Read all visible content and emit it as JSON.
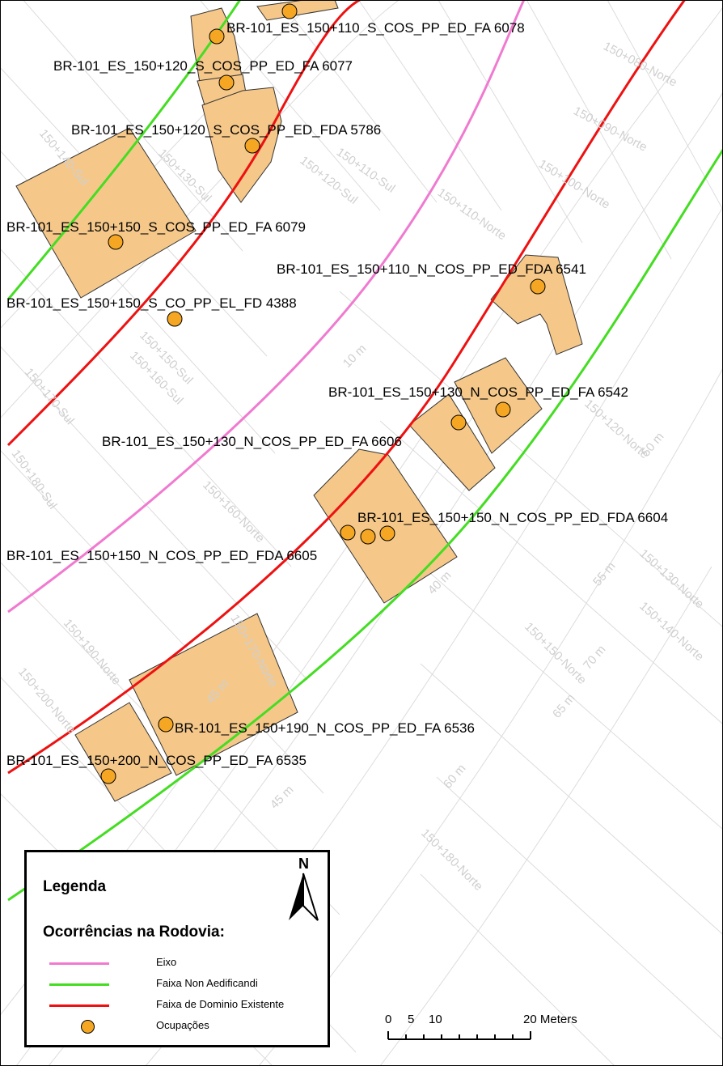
{
  "map": {
    "grid_labels": [
      "150+080-Norte",
      "150+090-Norte",
      "150+100-Norte",
      "150+110-Norte",
      "150+110-Sul",
      "150+120-Sul",
      "150+130-Sul",
      "150+140-Sul",
      "150+150-Sul",
      "150+160-Sul",
      "150+170-Sul",
      "150+180-Sul",
      "150+120-Norte",
      "150+130-Norte",
      "150+140-Norte",
      "150+150-Norte",
      "150+160-Norte",
      "150+170-Norte",
      "150+180-Norte",
      "150+190-Norte",
      "150+200-Norte",
      "10 m",
      "40 m",
      "45 m",
      "50 m",
      "55 m",
      "60 m",
      "65 m",
      "70 m",
      "45 m"
    ],
    "occupation_labels": [
      "BR-101_ES_150+110_S_COS_PP_ED_FA 6078",
      "BR-101_ES_150+120_S_COS_PP_ED_FA 6077",
      "BR-101_ES_150+120_S_COS_PP_ED_FDA 5786",
      "BR-101_ES_150+150_S_COS_PP_ED_FA 6079",
      "BR-101_ES_150+110_N_COS_PP_ED_FDA 6541",
      "BR-101_ES_150+150_S_CO_PP_EL_FD 4388",
      "BR-101_ES_150+130_N_COS_PP_ED_FA 6542",
      "BR-101_ES_150+130_N_COS_PP_ED_FA 6606",
      "BR-101_ES_150+150_N_COS_PP_ED_FDA 6604",
      "BR-101_ES_150+150_N_COS_PP_ED_FDA 6605",
      "BR-101_ES_150+190_N_COS_PP_ED_FA 6536",
      "BR-101_ES_150+200_N_COS_PP_ED_FA 6535"
    ]
  },
  "legend": {
    "title": "Legenda",
    "subtitle": "Ocorrências na Rodovia:",
    "items": [
      {
        "label": "Eixo",
        "color": "#f07ad0",
        "symbol": "line"
      },
      {
        "label": "Faixa Non Aedificandi",
        "color": "#44dd22",
        "symbol": "line"
      },
      {
        "label": "Faixa de Dominio Existente",
        "color": "#ee1111",
        "symbol": "line"
      },
      {
        "label": "Ocupações",
        "color": "#f5a623",
        "symbol": "circle"
      }
    ],
    "north_label": "N"
  },
  "scalebar": {
    "ticks": [
      "0",
      "5",
      "10",
      "20 Meters"
    ]
  },
  "colors": {
    "building_fill": "#f5c88a",
    "occupation_marker": "#f5a623",
    "grid": "#d9d9d9"
  }
}
